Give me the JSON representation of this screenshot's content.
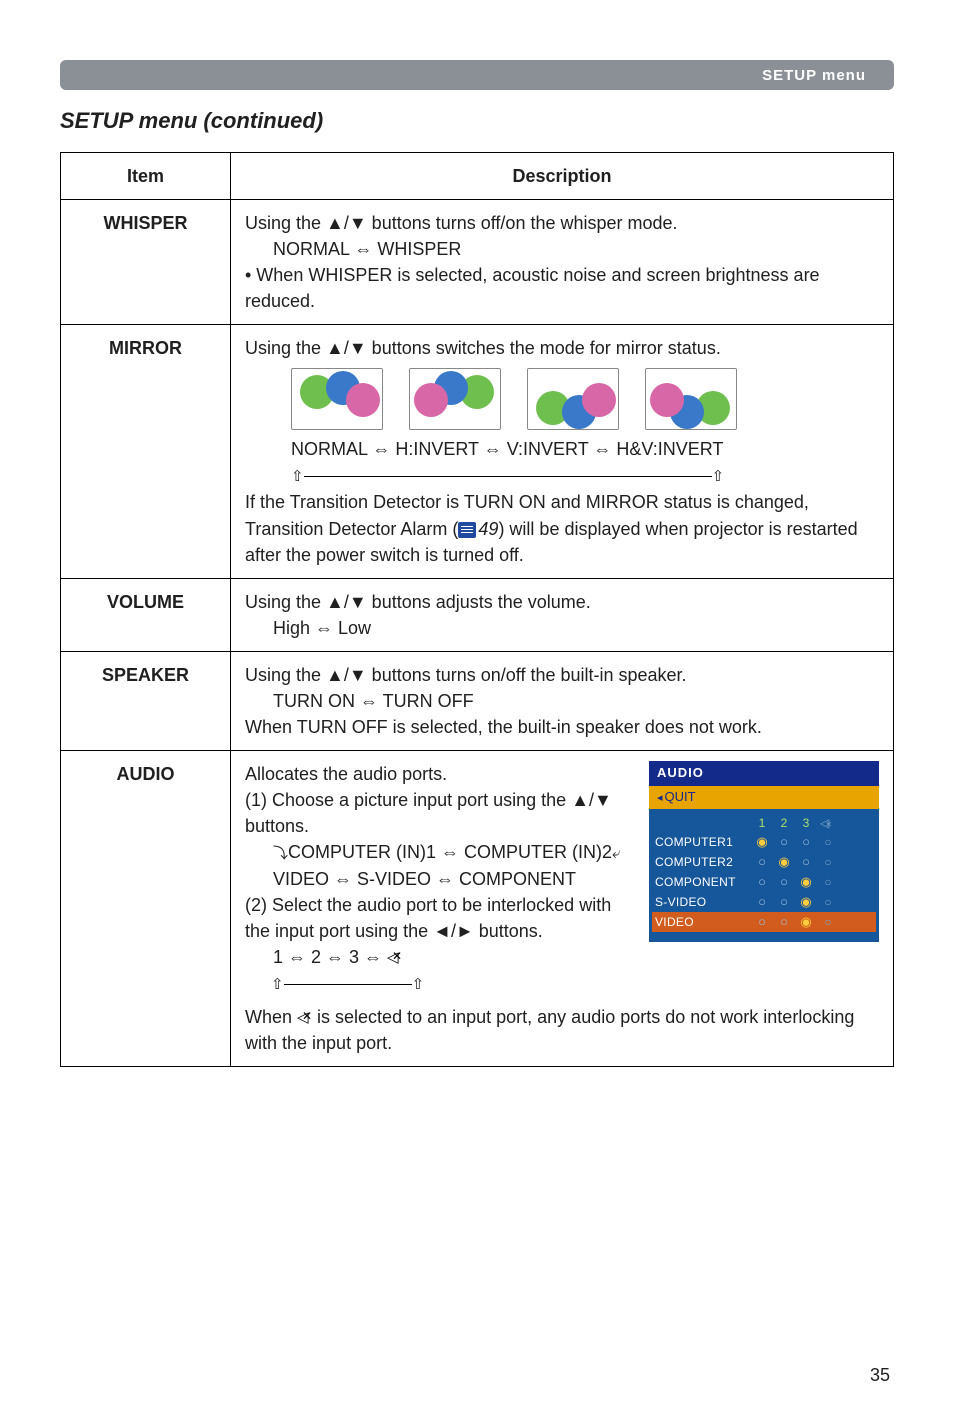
{
  "header": {
    "stripe_label": "SETUP menu"
  },
  "section_title": "SETUP menu (continued)",
  "page_number": "35",
  "table": {
    "head": {
      "item": "Item",
      "description": "Description"
    },
    "whisper": {
      "label": "WHISPER",
      "line1": "Using the ▲/▼ buttons turns off/on the whisper mode.",
      "line2": "NORMAL ⇔ WHISPER",
      "line3": "• When WHISPER is selected, acoustic noise and screen brightness are reduced."
    },
    "mirror": {
      "label": "MIRROR",
      "line1": "Using the ▲/▼ buttons switches the mode for mirror status.",
      "modes": "NORMAL ⇔ H:INVERT ⇔ V:INVERT ⇔ H&V:INVERT",
      "note_a": "If the Transition Detector is TURN ON and MIRROR status is changed, Transition Detector Alarm (",
      "note_ref": "49",
      "note_b": ") will be displayed when projector is restarted after the power switch is turned off.",
      "swatches": {
        "normal": {
          "g": [
            8,
            6,
            34,
            34
          ],
          "b": [
            34,
            2,
            34,
            34
          ],
          "p": [
            54,
            14,
            34,
            34
          ]
        },
        "hinvert": {
          "g": [
            50,
            6,
            34,
            34
          ],
          "b": [
            24,
            2,
            34,
            34
          ],
          "p": [
            4,
            14,
            34,
            34
          ]
        },
        "vinvert": {
          "g": [
            8,
            22,
            34,
            34
          ],
          "b": [
            34,
            26,
            34,
            34
          ],
          "p": [
            54,
            14,
            34,
            34
          ]
        },
        "hvinvert": {
          "g": [
            50,
            22,
            34,
            34
          ],
          "b": [
            24,
            26,
            34,
            34
          ],
          "p": [
            4,
            14,
            34,
            34
          ]
        }
      }
    },
    "volume": {
      "label": "VOLUME",
      "line1": "Using the ▲/▼ buttons adjusts the volume.",
      "line2": "High ⇔ Low"
    },
    "speaker": {
      "label": "SPEAKER",
      "line1": "Using the ▲/▼ buttons turns on/off the built-in speaker.",
      "line2": "TURN ON ⇔ TURN OFF",
      "line3": "When TURN OFF is selected, the built-in speaker does not work."
    },
    "audio": {
      "label": "AUDIO",
      "line1": "Allocates the audio ports.",
      "step1": "(1) Choose a picture input port using the ▲/▼ buttons.",
      "ports_line_a": "COMPUTER (IN)1 ⇔ COMPUTER (IN)2",
      "ports_line_b": "VIDEO ⇔ S-VIDEO ⇔ COMPONENT",
      "step2": "(2) Select the audio port to be interlocked with the input port using the ◄/► buttons.",
      "seq": "1 ⇔ 2 ⇔ 3 ⇔ ",
      "note_a": "When ",
      "note_b": " is selected to an input port, any audio ports do not work interlocking with the input port.",
      "dialog": {
        "title": "AUDIO",
        "quit": "QUIT",
        "cols": [
          "1",
          "2",
          "3",
          ""
        ],
        "rows": [
          {
            "label": "COMPUTER1",
            "sel": 0,
            "hl": false
          },
          {
            "label": "COMPUTER2",
            "sel": 1,
            "hl": false
          },
          {
            "label": "COMPONENT",
            "sel": 2,
            "hl": false
          },
          {
            "label": "S-VIDEO",
            "sel": 2,
            "hl": false
          },
          {
            "label": "VIDEO",
            "sel": 2,
            "hl": true
          }
        ]
      }
    }
  }
}
